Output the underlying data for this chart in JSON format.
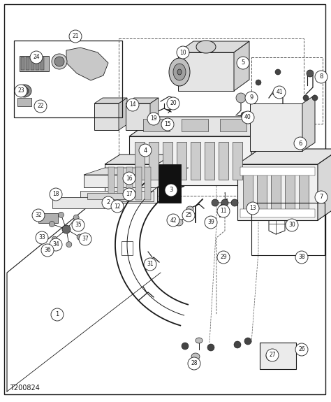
{
  "bg_color": "#ffffff",
  "line_color": "#1a1a1a",
  "gray1": "#e8e8e8",
  "gray2": "#d0d0d0",
  "gray3": "#b8b8b8",
  "gray4": "#a0a0a0",
  "dark": "#333333",
  "figsize": [
    4.74,
    5.75
  ],
  "dpi": 100,
  "footer_text": "T200824"
}
